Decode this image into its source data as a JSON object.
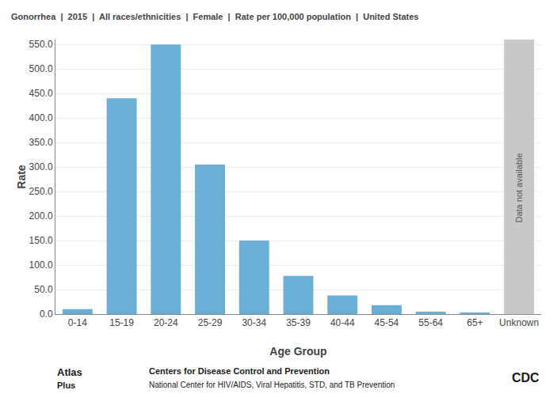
{
  "chart_data": {
    "type": "bar",
    "title": "Gonorrhea  |  2015  |  All races/ethnicities  |  Female  |  Rate per 100,000 population  |  United States",
    "categories": [
      "0-14",
      "15-19",
      "20-24",
      "25-29",
      "30-34",
      "35-39",
      "40-44",
      "45-54",
      "55-64",
      "65+",
      "Unknown"
    ],
    "values": [
      10.0,
      440.0,
      550.0,
      305.0,
      150.0,
      78.0,
      38.0,
      18.0,
      5.0,
      2.0,
      null
    ],
    "colors": [
      "#6aafd6",
      "#6aafd6",
      "#6aafd6",
      "#6aafd6",
      "#6aafd6",
      "#6aafd6",
      "#6aafd6",
      "#6aafd6",
      "#6aafd6",
      "#6aafd6",
      "#c8c8c8"
    ],
    "ylabel": "Rate",
    "xlabel": "Age Group",
    "ylim": [
      0,
      560
    ],
    "yticks": [
      {
        "value": 0,
        "label": "0.0"
      },
      {
        "value": 50,
        "label": "50.0"
      },
      {
        "value": 100,
        "label": "100.0"
      },
      {
        "value": 150,
        "label": "150.0"
      },
      {
        "value": 200,
        "label": "200.0"
      },
      {
        "value": 250,
        "label": "250.0"
      },
      {
        "value": 300,
        "label": "300.0"
      },
      {
        "value": 350,
        "label": "350.0"
      },
      {
        "value": 400,
        "label": "400.0"
      },
      {
        "value": 450,
        "label": "450.0"
      },
      {
        "value": 500,
        "label": "500.0"
      },
      {
        "value": 550,
        "label": "550.0"
      }
    ],
    "grid": true,
    "annotations": [
      {
        "text": "Data not available",
        "x": "Unknown"
      },
      {
        "text": "Atlas"
      },
      {
        "text": "Plus"
      },
      {
        "text": "Centers for Disease Control and Prevention"
      },
      {
        "text": "National Center for HIV/AIDS, Viral Hepatitis, STD, and TB Prevention"
      },
      {
        "text": "CDC"
      }
    ]
  }
}
